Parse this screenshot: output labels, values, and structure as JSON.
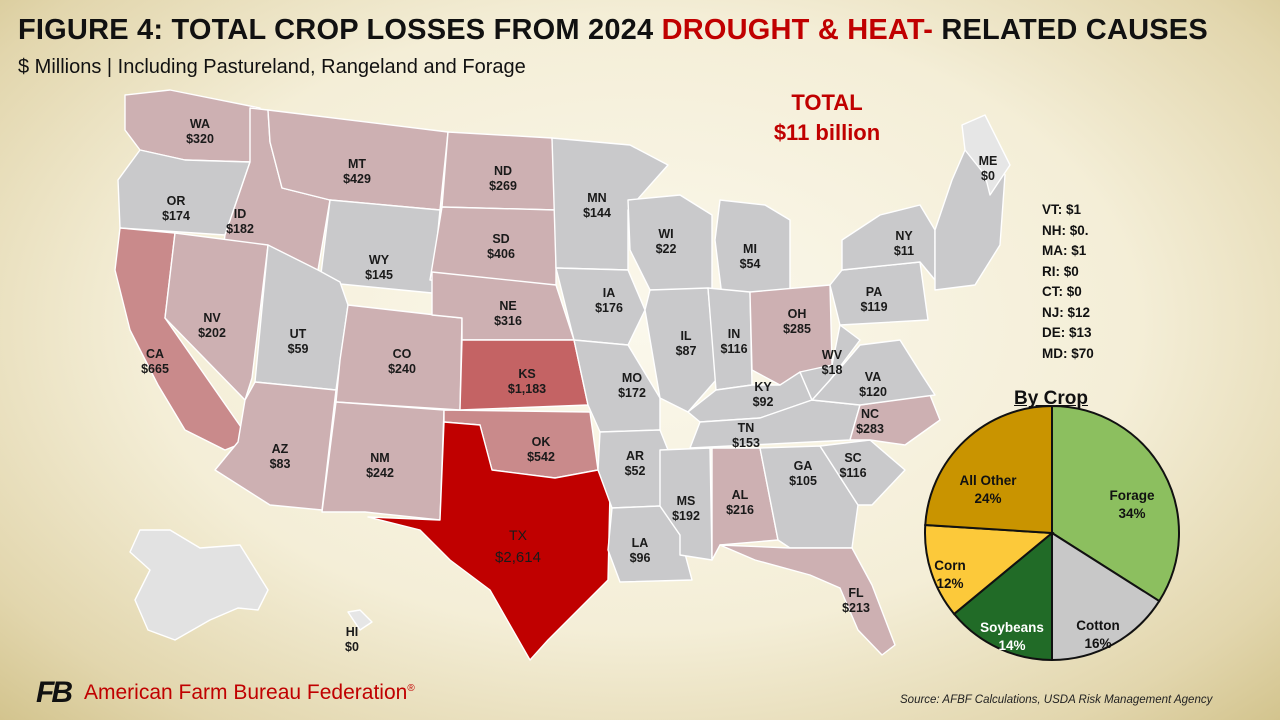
{
  "title": {
    "part1": "FIGURE 4: TOTAL CROP LOSSES FROM 2024 ",
    "highlight": "DROUGHT & HEAT-",
    "part2": " RELATED CAUSES"
  },
  "subtitle": "$ Millions | Including Pastureland, Rangeland and Forage",
  "total": {
    "label": "TOTAL",
    "value": "$11 billion"
  },
  "small_states": [
    "VT: $1",
    "NH: $0.",
    "MA: $1",
    "RI: $0",
    "CT: $0",
    "NJ: $12",
    "DE: $13",
    "MD: $70"
  ],
  "states": [
    {
      "abbr": "WA",
      "value": "$320"
    },
    {
      "abbr": "OR",
      "value": "$174"
    },
    {
      "abbr": "CA",
      "value": "$665"
    },
    {
      "abbr": "ID",
      "value": "$182"
    },
    {
      "abbr": "NV",
      "value": "$202"
    },
    {
      "abbr": "MT",
      "value": "$429"
    },
    {
      "abbr": "WY",
      "value": "$145"
    },
    {
      "abbr": "UT",
      "value": "$59"
    },
    {
      "abbr": "AZ",
      "value": "$83"
    },
    {
      "abbr": "CO",
      "value": "$240"
    },
    {
      "abbr": "NM",
      "value": "$242"
    },
    {
      "abbr": "ND",
      "value": "$269"
    },
    {
      "abbr": "SD",
      "value": "$406"
    },
    {
      "abbr": "NE",
      "value": "$316"
    },
    {
      "abbr": "KS",
      "value": "$1,183"
    },
    {
      "abbr": "OK",
      "value": "$542"
    },
    {
      "abbr": "TX",
      "value": "$2,614"
    },
    {
      "abbr": "MN",
      "value": "$144"
    },
    {
      "abbr": "IA",
      "value": "$176"
    },
    {
      "abbr": "MO",
      "value": "$172"
    },
    {
      "abbr": "AR",
      "value": "$52"
    },
    {
      "abbr": "LA",
      "value": "$96"
    },
    {
      "abbr": "WI",
      "value": "$22"
    },
    {
      "abbr": "IL",
      "value": "$87"
    },
    {
      "abbr": "MI",
      "value": "$54"
    },
    {
      "abbr": "IN",
      "value": "$116"
    },
    {
      "abbr": "OH",
      "value": "$285"
    },
    {
      "abbr": "KY",
      "value": "$92"
    },
    {
      "abbr": "TN",
      "value": "$153"
    },
    {
      "abbr": "MS",
      "value": "$192"
    },
    {
      "abbr": "AL",
      "value": "$216"
    },
    {
      "abbr": "GA",
      "value": "$105"
    },
    {
      "abbr": "FL",
      "value": "$213"
    },
    {
      "abbr": "SC",
      "value": "$116"
    },
    {
      "abbr": "NC",
      "value": "$283"
    },
    {
      "abbr": "VA",
      "value": "$120"
    },
    {
      "abbr": "WV",
      "value": "$18"
    },
    {
      "abbr": "PA",
      "value": "$119"
    },
    {
      "abbr": "NY",
      "value": "$11"
    },
    {
      "abbr": "ME",
      "value": "$0"
    },
    {
      "abbr": "HI",
      "value": "$0"
    }
  ],
  "colors": {
    "zero": "#e6e6e6",
    "low": "#c9c9cb",
    "mid": "#cdb0b2",
    "high": "#c98a8b",
    "vhigh": "#c46364",
    "max": "#c00000",
    "alaska": "#e2e2e2"
  },
  "pie": {
    "title": "By Crop",
    "slices": [
      {
        "name": "Forage",
        "pct": "34%",
        "value": 34,
        "color": "#8cbf5f"
      },
      {
        "name": "Cotton",
        "pct": "16%",
        "value": 16,
        "color": "#c8c8c8"
      },
      {
        "name": "Soybeans",
        "pct": "14%",
        "value": 14,
        "color": "#216b27"
      },
      {
        "name": "Corn",
        "pct": "12%",
        "value": 12,
        "color": "#fcc93a"
      },
      {
        "name": "All Other",
        "pct": "24%",
        "value": 24,
        "color": "#c99400"
      }
    ]
  },
  "footer": {
    "logo_mark": "FB",
    "org": "American Farm Bureau Federation",
    "registered": "®",
    "source": "Source: AFBF Calculations, USDA Risk Management Agency"
  }
}
